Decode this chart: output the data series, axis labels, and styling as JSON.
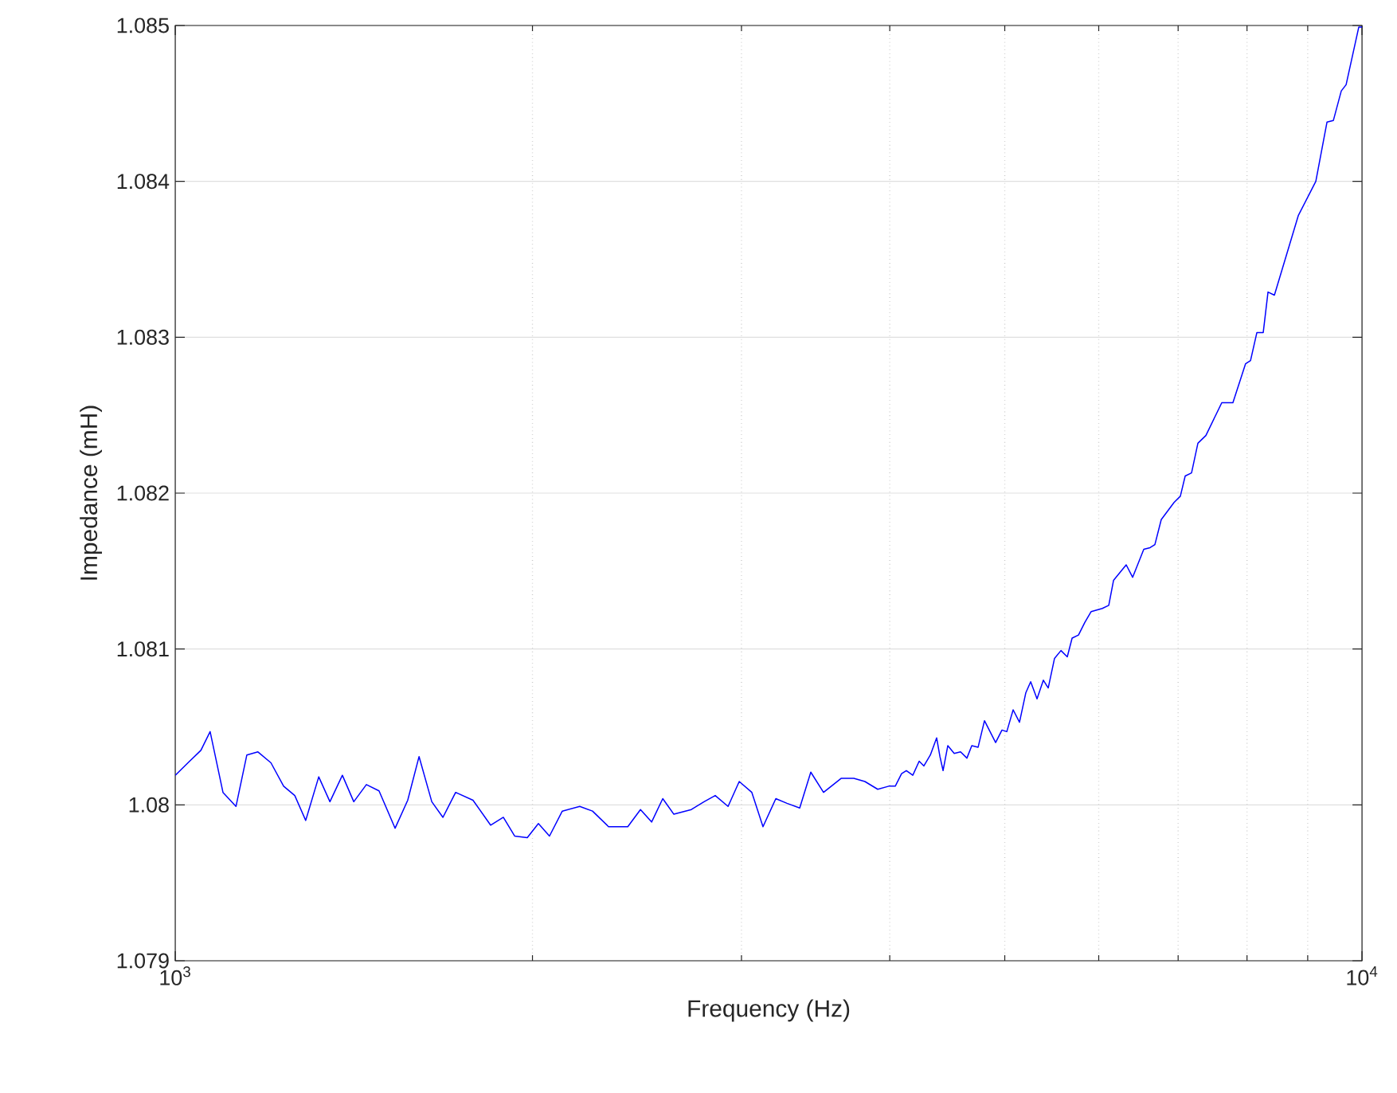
{
  "chart_data": {
    "type": "line",
    "xlabel": "Frequency (Hz)",
    "ylabel": "Impedance (mH)",
    "log": "x",
    "grid": true,
    "marker": "none",
    "line_style": "solid",
    "xlim": [
      1000,
      10000
    ],
    "ylim": [
      1.079,
      1.085
    ],
    "xticks": [
      {
        "value": 1000,
        "label": "10$^{3}$"
      },
      {
        "value": 2000,
        "label": null
      },
      {
        "value": 3000,
        "label": null
      },
      {
        "value": 4000,
        "label": null
      },
      {
        "value": 5000,
        "label": null
      },
      {
        "value": 6000,
        "label": null
      },
      {
        "value": 7000,
        "label": null
      },
      {
        "value": 8000,
        "label": null
      },
      {
        "value": 9000,
        "label": null
      },
      {
        "value": 10000,
        "label": "10$^{4}$"
      }
    ],
    "yticks": [
      1.079,
      1.08,
      1.081,
      1.082,
      1.083,
      1.084,
      1.085
    ],
    "series": [
      {
        "color": "#0000ff",
        "x": [
          1000,
          1025,
          1051,
          1070,
          1097,
          1125,
          1149,
          1174,
          1204,
          1234,
          1261,
          1288,
          1321,
          1350,
          1383,
          1414,
          1449,
          1485,
          1532,
          1570,
          1605,
          1645,
          1681,
          1723,
          1782,
          1844,
          1890,
          1932,
          1980,
          2023,
          2067,
          2119,
          2192,
          2247,
          2318,
          2406,
          2466,
          2520,
          2575,
          2631,
          2722,
          2790,
          2851,
          2923,
          2987,
          3061,
          3128,
          3207,
          3277,
          3359,
          3432,
          3518,
          3640,
          3731,
          3812,
          3908,
          3993,
          4043,
          4093,
          4131,
          4183,
          4235,
          4274,
          4328,
          4381,
          4409,
          4436,
          4477,
          4533,
          4589,
          4646,
          4690,
          4748,
          4807,
          4912,
          4973,
          5020,
          5082,
          5145,
          5209,
          5258,
          5323,
          5389,
          5440,
          5507,
          5576,
          5645,
          5698,
          5769,
          5840,
          5913,
          6042,
          6118,
          6175,
          6329,
          6408,
          6548,
          6629,
          6691,
          6774,
          6944,
          7030,
          7096,
          7184,
          7274,
          7387,
          7619,
          7785,
          7980,
          8055,
          8155,
          8256,
          8333,
          8437,
          8837,
          9143,
          9343,
          9459,
          9606,
          9696,
          9938,
          10000
        ],
        "values": [
          1.08019,
          1.08027,
          1.08035,
          1.08047,
          1.08008,
          1.07999,
          1.08032,
          1.08034,
          1.08027,
          1.08012,
          1.08006,
          1.0799,
          1.08018,
          1.08002,
          1.08019,
          1.08002,
          1.08013,
          1.08009,
          1.07985,
          1.08003,
          1.08031,
          1.08002,
          1.07992,
          1.08008,
          1.08003,
          1.07987,
          1.07992,
          1.0798,
          1.07979,
          1.07988,
          1.0798,
          1.07996,
          1.07999,
          1.07996,
          1.07986,
          1.07986,
          1.07997,
          1.07989,
          1.08004,
          1.07994,
          1.07997,
          1.08002,
          1.08006,
          1.07999,
          1.08015,
          1.08008,
          1.07986,
          1.08004,
          1.08001,
          1.07998,
          1.08021,
          1.08008,
          1.08017,
          1.08017,
          1.08015,
          1.0801,
          1.08012,
          1.08012,
          1.0802,
          1.08022,
          1.08019,
          1.08028,
          1.08025,
          1.08032,
          1.08043,
          1.08031,
          1.08022,
          1.08038,
          1.08033,
          1.08034,
          1.0803,
          1.08038,
          1.08037,
          1.08054,
          1.0804,
          1.08048,
          1.08047,
          1.08061,
          1.08053,
          1.08072,
          1.08079,
          1.08068,
          1.0808,
          1.08075,
          1.08094,
          1.08099,
          1.08095,
          1.08107,
          1.08109,
          1.08117,
          1.08124,
          1.08126,
          1.08128,
          1.08144,
          1.08154,
          1.08146,
          1.08164,
          1.08165,
          1.08167,
          1.08183,
          1.08194,
          1.08198,
          1.08211,
          1.08213,
          1.08232,
          1.08237,
          1.08258,
          1.08258,
          1.08283,
          1.08285,
          1.08303,
          1.08303,
          1.08329,
          1.08327,
          1.08378,
          1.084,
          1.08438,
          1.08439,
          1.08458,
          1.08462,
          1.08499,
          1.08499
        ]
      }
    ]
  }
}
